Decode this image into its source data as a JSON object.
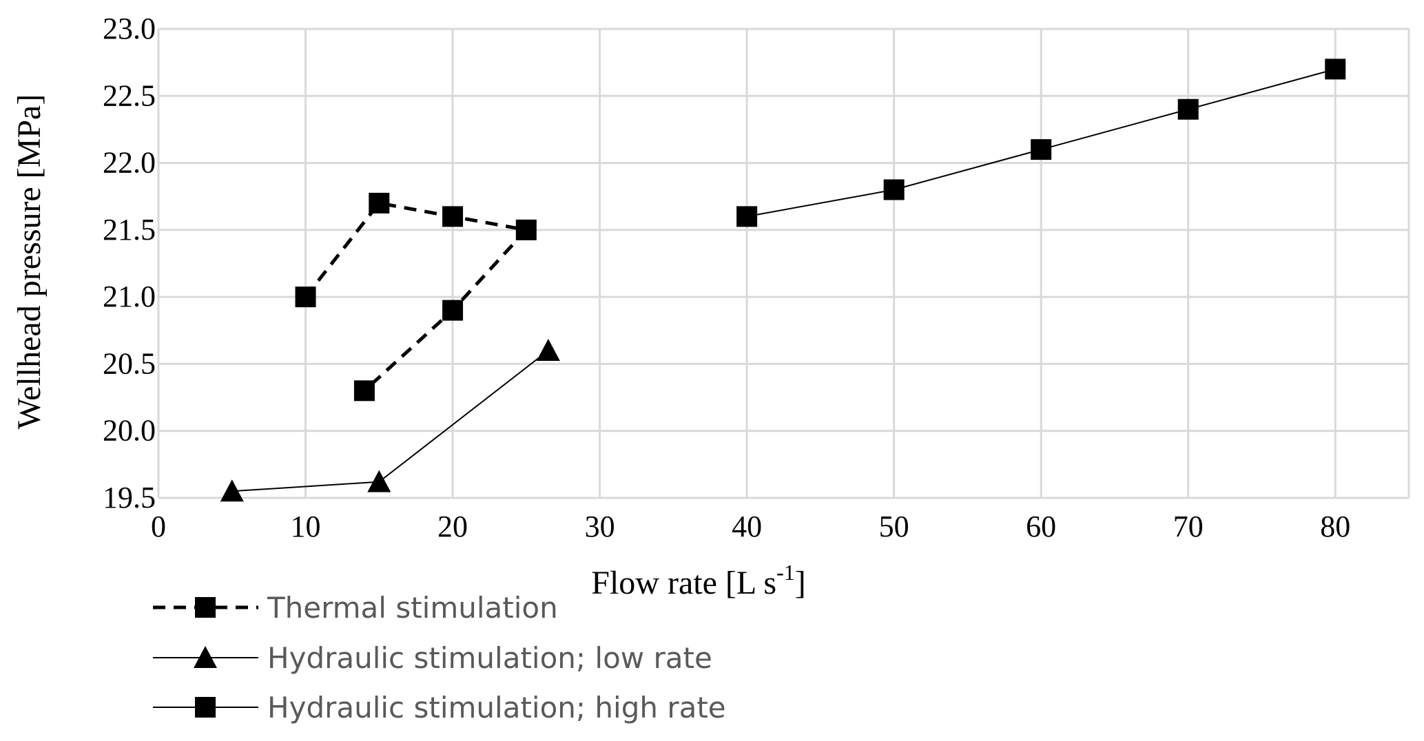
{
  "chart_data": {
    "type": "line",
    "xlabel": "Flow rate [L s",
    "xlabel_sup": "-1",
    "xlabel_end": "]",
    "ylabel": "Wellhead pressure [MPa]",
    "xlim": [
      0,
      85
    ],
    "ylim": [
      19.5,
      23.0
    ],
    "xticks": [
      0,
      10,
      20,
      30,
      40,
      50,
      60,
      70,
      80
    ],
    "xtick_labels": [
      "0",
      "10",
      "20",
      "30",
      "40",
      "50",
      "60",
      "70",
      "80"
    ],
    "yticks": [
      19.5,
      20.0,
      20.5,
      21.0,
      21.5,
      22.0,
      22.5,
      23.0
    ],
    "ytick_labels": [
      "19.5",
      "20.0",
      "20.5",
      "21.0",
      "21.5",
      "22.0",
      "22.5",
      "23.0"
    ],
    "grid": true,
    "legend_position": "bottom-left",
    "series": [
      {
        "name": "Thermal stimulation",
        "marker": "square",
        "line": "dashed",
        "color": "#000000",
        "points": [
          [
            10,
            21.0
          ],
          [
            15,
            21.7
          ],
          [
            20,
            21.6
          ],
          [
            25,
            21.5
          ],
          [
            20,
            20.9
          ],
          [
            14,
            20.3
          ]
        ]
      },
      {
        "name": "Hydraulic stimulation; low rate",
        "marker": "triangle",
        "line": "solid",
        "color": "#000000",
        "points": [
          [
            5,
            19.55
          ],
          [
            15,
            19.62
          ],
          [
            26.5,
            20.6
          ]
        ]
      },
      {
        "name": "Hydraulic stimulation; high rate",
        "marker": "square",
        "line": "solid",
        "color": "#000000",
        "points": [
          [
            40,
            21.6
          ],
          [
            50,
            21.8
          ],
          [
            60,
            22.1
          ],
          [
            70,
            22.4
          ],
          [
            80,
            22.7
          ]
        ]
      }
    ]
  }
}
